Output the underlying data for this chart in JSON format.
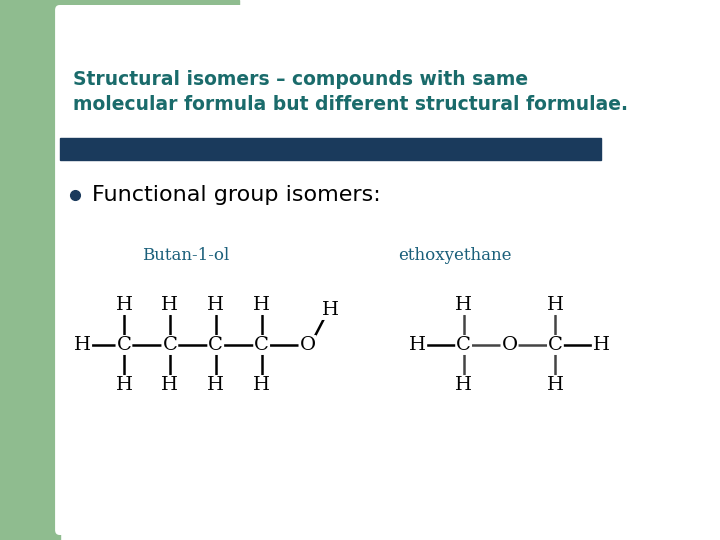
{
  "bg_color": "#ffffff",
  "left_bar_color": "#8fbc8f",
  "title_text": "Structural isomers – compounds with same\nmolecular formula but different structural formulae.",
  "title_color": "#1a6b6b",
  "title_fontsize": 13.5,
  "divider_color": "#1a3a5c",
  "bullet_color": "#1a3a5c",
  "bullet_text": "Functional group isomers:",
  "bullet_fontsize": 16,
  "label1": "Butan-1-ol",
  "label2": "ethoxyethane",
  "label_color": "#1a5f7a",
  "label_fontsize": 12
}
